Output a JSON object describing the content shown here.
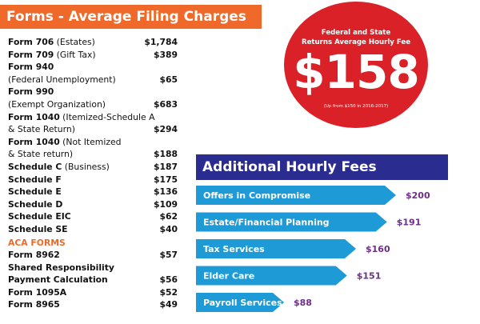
{
  "header": {
    "title": "Forms - Average Filing Charges"
  },
  "forms": [
    {
      "bold": "Form 706",
      "rest": " (Estates)",
      "amount": "$1,784"
    },
    {
      "bold": "Form 709",
      "rest": " (Gift Tax)",
      "amount": "$389"
    },
    {
      "bold": "Form 940",
      "rest": "",
      "amount": ""
    },
    {
      "bold": "",
      "rest": "(Federal Unemployment)",
      "amount": "$65"
    },
    {
      "bold": "Form 990",
      "rest": "",
      "amount": ""
    },
    {
      "bold": "",
      "rest": "(Exempt Organization)",
      "amount": "$683"
    },
    {
      "bold": "Form 1040",
      "rest": " (Itemized-Schedule A",
      "amount": ""
    },
    {
      "bold": "",
      "rest": "& State Return)",
      "amount": "$294"
    },
    {
      "bold": "Form 1040",
      "rest": " (Not Itemized",
      "amount": ""
    },
    {
      "bold": "",
      "rest": "& State return)",
      "amount": "$188"
    },
    {
      "bold": "Schedule C",
      "rest": " (Business)",
      "amount": "$187"
    },
    {
      "bold": "Schedule F",
      "rest": "",
      "amount": "$175"
    },
    {
      "bold": "Schedule E",
      "rest": "",
      "amount": "$136"
    },
    {
      "bold": "Schedule D",
      "rest": "",
      "amount": "$109"
    },
    {
      "bold": "Schedule EIC",
      "rest": "",
      "amount": "$62"
    },
    {
      "bold": "Schedule SE",
      "rest": "",
      "amount": "$40"
    }
  ],
  "aca": {
    "title": "ACA FORMS",
    "items": [
      {
        "bold": "Form 8962",
        "rest": "",
        "amount": "$57"
      },
      {
        "bold": "Shared Responsibility",
        "rest": "",
        "amount": ""
      },
      {
        "bold": "Payment Calculation",
        "rest": "",
        "amount": "$56"
      },
      {
        "bold": "Form 1095A",
        "rest": "",
        "amount": "$52"
      },
      {
        "bold": "Form 8965",
        "rest": "",
        "amount": "$49"
      }
    ]
  },
  "fee_circle": {
    "title_line1": "Federal and State",
    "title_line2": "Returns Average Hourly Fee",
    "fee": "$158",
    "note": "(Up from $150 in 2016-2017)"
  },
  "additional": {
    "title": "Additional Hourly Fees"
  },
  "colors": {
    "orange": "#ef6a2a",
    "red": "#da2128",
    "navy": "#2b2c90",
    "blue": "#1e9bd7",
    "purple": "#6d2e86"
  },
  "chart_data": {
    "type": "bar",
    "title": "Additional Hourly Fees",
    "categories": [
      "Offers in Compromise",
      "Estate/Financial Planning",
      "Tax Services",
      "Elder Care",
      "Payroll Services"
    ],
    "values": [
      200,
      191,
      160,
      151,
      88
    ],
    "value_labels": [
      "$200",
      "$191",
      "$160",
      "$151",
      "$88"
    ],
    "orientation": "horizontal"
  }
}
